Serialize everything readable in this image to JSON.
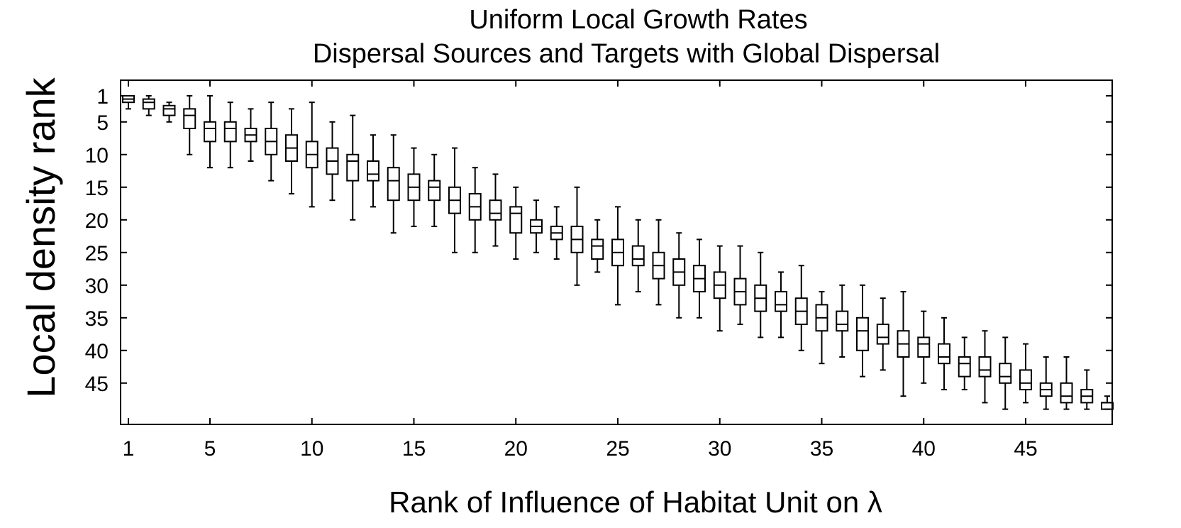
{
  "chart_data": {
    "type": "boxplot",
    "title": "Uniform Local Growth Rates",
    "subtitle": "Dispersal Sources and Targets with Global Dispersal",
    "xlabel": "Rank of Influence of Habitat Unit on λ",
    "ylabel": "Local density rank",
    "x_ticks": [
      1,
      5,
      10,
      15,
      20,
      25,
      30,
      35,
      40,
      45
    ],
    "y_ticks": [
      1,
      5,
      10,
      15,
      20,
      25,
      30,
      35,
      40,
      45
    ],
    "xlim": [
      0.5,
      49.5
    ],
    "ylim": [
      50.5,
      0
    ],
    "y_reversed": true,
    "series": [
      {
        "x": 1,
        "min": 1,
        "q1": 1,
        "median": 1.5,
        "q3": 2,
        "max": 3
      },
      {
        "x": 2,
        "min": 1,
        "q1": 1.5,
        "median": 2,
        "q3": 3,
        "max": 4
      },
      {
        "x": 3,
        "min": 2,
        "q1": 2.5,
        "median": 3,
        "q3": 4,
        "max": 5
      },
      {
        "x": 4,
        "min": 1,
        "q1": 3,
        "median": 4,
        "q3": 6,
        "max": 10
      },
      {
        "x": 5,
        "min": 1,
        "q1": 5,
        "median": 6,
        "q3": 8,
        "max": 12
      },
      {
        "x": 6,
        "min": 2,
        "q1": 5,
        "median": 6,
        "q3": 8,
        "max": 12
      },
      {
        "x": 7,
        "min": 3,
        "q1": 6,
        "median": 7,
        "q3": 8,
        "max": 11
      },
      {
        "x": 8,
        "min": 2,
        "q1": 6,
        "median": 8,
        "q3": 10,
        "max": 14
      },
      {
        "x": 9,
        "min": 3,
        "q1": 7,
        "median": 9,
        "q3": 11,
        "max": 16
      },
      {
        "x": 10,
        "min": 2,
        "q1": 8,
        "median": 10,
        "q3": 12,
        "max": 18
      },
      {
        "x": 11,
        "min": 5,
        "q1": 9,
        "median": 11,
        "q3": 13,
        "max": 17
      },
      {
        "x": 12,
        "min": 4,
        "q1": 10,
        "median": 11,
        "q3": 14,
        "max": 20
      },
      {
        "x": 13,
        "min": 7,
        "q1": 11,
        "median": 13,
        "q3": 14,
        "max": 18
      },
      {
        "x": 14,
        "min": 7,
        "q1": 12,
        "median": 14,
        "q3": 17,
        "max": 22
      },
      {
        "x": 15,
        "min": 9,
        "q1": 13,
        "median": 15,
        "q3": 17,
        "max": 21
      },
      {
        "x": 16,
        "min": 10,
        "q1": 14,
        "median": 15,
        "q3": 17,
        "max": 21
      },
      {
        "x": 17,
        "min": 9,
        "q1": 15,
        "median": 17,
        "q3": 19,
        "max": 25
      },
      {
        "x": 18,
        "min": 12,
        "q1": 16,
        "median": 18,
        "q3": 20,
        "max": 25
      },
      {
        "x": 19,
        "min": 13,
        "q1": 17,
        "median": 19,
        "q3": 20,
        "max": 24
      },
      {
        "x": 20,
        "min": 15,
        "q1": 18,
        "median": 19,
        "q3": 22,
        "max": 26
      },
      {
        "x": 21,
        "min": 17,
        "q1": 20,
        "median": 21,
        "q3": 22,
        "max": 25
      },
      {
        "x": 22,
        "min": 18,
        "q1": 21,
        "median": 22,
        "q3": 23,
        "max": 26
      },
      {
        "x": 23,
        "min": 15,
        "q1": 21,
        "median": 23,
        "q3": 25,
        "max": 30
      },
      {
        "x": 24,
        "min": 20,
        "q1": 23,
        "median": 24,
        "q3": 26,
        "max": 28
      },
      {
        "x": 25,
        "min": 18,
        "q1": 23,
        "median": 25,
        "q3": 27,
        "max": 33
      },
      {
        "x": 26,
        "min": 20,
        "q1": 24,
        "median": 26,
        "q3": 27,
        "max": 31
      },
      {
        "x": 27,
        "min": 20,
        "q1": 25,
        "median": 27,
        "q3": 29,
        "max": 33
      },
      {
        "x": 28,
        "min": 22,
        "q1": 26,
        "median": 28,
        "q3": 30,
        "max": 35
      },
      {
        "x": 29,
        "min": 23,
        "q1": 27,
        "median": 29,
        "q3": 31,
        "max": 35
      },
      {
        "x": 30,
        "min": 24,
        "q1": 28,
        "median": 30,
        "q3": 32,
        "max": 37
      },
      {
        "x": 31,
        "min": 24,
        "q1": 29,
        "median": 31,
        "q3": 33,
        "max": 36
      },
      {
        "x": 32,
        "min": 25,
        "q1": 30,
        "median": 32,
        "q3": 34,
        "max": 38
      },
      {
        "x": 33,
        "min": 28,
        "q1": 31,
        "median": 33,
        "q3": 34,
        "max": 38
      },
      {
        "x": 34,
        "min": 27,
        "q1": 32,
        "median": 34,
        "q3": 36,
        "max": 40
      },
      {
        "x": 35,
        "min": 31,
        "q1": 33,
        "median": 35,
        "q3": 37,
        "max": 42
      },
      {
        "x": 36,
        "min": 30,
        "q1": 34,
        "median": 36,
        "q3": 37,
        "max": 41
      },
      {
        "x": 37,
        "min": 30,
        "q1": 35,
        "median": 37,
        "q3": 40,
        "max": 44
      },
      {
        "x": 38,
        "min": 32,
        "q1": 36,
        "median": 38,
        "q3": 39,
        "max": 43
      },
      {
        "x": 39,
        "min": 31,
        "q1": 37,
        "median": 39,
        "q3": 41,
        "max": 47
      },
      {
        "x": 40,
        "min": 34,
        "q1": 38,
        "median": 39,
        "q3": 41,
        "max": 45
      },
      {
        "x": 41,
        "min": 35,
        "q1": 39,
        "median": 41,
        "q3": 42,
        "max": 46
      },
      {
        "x": 42,
        "min": 38,
        "q1": 41,
        "median": 42,
        "q3": 44,
        "max": 46
      },
      {
        "x": 43,
        "min": 37,
        "q1": 41,
        "median": 43,
        "q3": 44,
        "max": 48
      },
      {
        "x": 44,
        "min": 38,
        "q1": 42,
        "median": 44,
        "q3": 45,
        "max": 49
      },
      {
        "x": 45,
        "min": 39,
        "q1": 43,
        "median": 45,
        "q3": 46,
        "max": 48
      },
      {
        "x": 46,
        "min": 41,
        "q1": 45,
        "median": 46,
        "q3": 47,
        "max": 49
      },
      {
        "x": 47,
        "min": 41,
        "q1": 45,
        "median": 47,
        "q3": 48,
        "max": 49
      },
      {
        "x": 48,
        "min": 43,
        "q1": 46,
        "median": 47,
        "q3": 48,
        "max": 49
      },
      {
        "x": 49,
        "min": 47,
        "q1": 48,
        "median": 48,
        "q3": 49,
        "max": 49
      }
    ]
  }
}
